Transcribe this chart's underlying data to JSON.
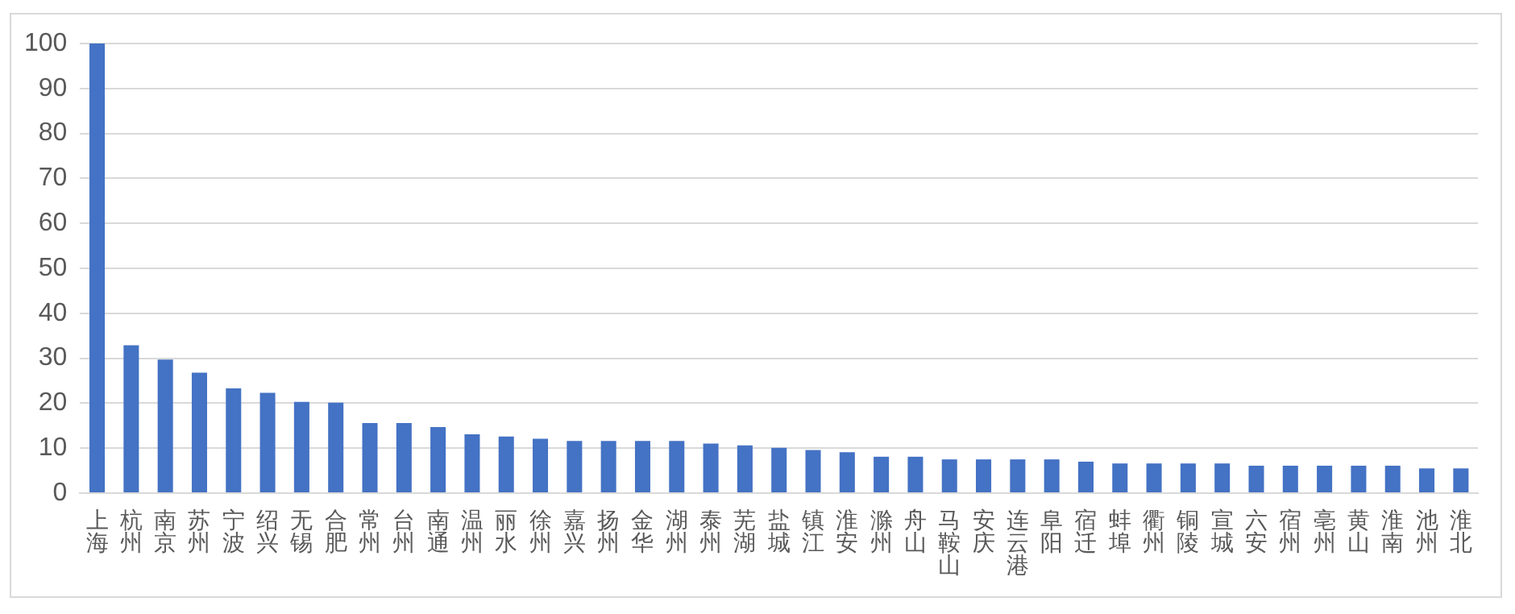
{
  "chart_data": {
    "type": "bar",
    "categories": [
      "上海",
      "杭州",
      "南京",
      "苏州",
      "宁波",
      "绍兴",
      "无锡",
      "合肥",
      "常州",
      "台州",
      "南通",
      "温州",
      "丽水",
      "徐州",
      "嘉兴",
      "扬州",
      "金华",
      "湖州",
      "泰州",
      "芜湖",
      "盐城",
      "镇江",
      "淮安",
      "滁州",
      "舟山",
      "马鞍山",
      "安庆",
      "连云港",
      "阜阳",
      "宿迁",
      "蚌埠",
      "衢州",
      "铜陵",
      "宣城",
      "六安",
      "宿州",
      "亳州",
      "黄山",
      "淮南",
      "池州",
      "淮北"
    ],
    "values": [
      100,
      32.9,
      29.7,
      26.8,
      23.3,
      22.3,
      20.3,
      20.1,
      15.6,
      15.6,
      14.7,
      13.1,
      12.6,
      12.1,
      11.6,
      11.6,
      11.6,
      11.6,
      11.0,
      10.6,
      10.1,
      9.6,
      9.1,
      8.1,
      8.1,
      7.5,
      7.5,
      7.5,
      7.5,
      7.0,
      6.6,
      6.6,
      6.6,
      6.6,
      6.1,
      6.1,
      6.1,
      6.1,
      6.1,
      5.5,
      5.5
    ],
    "color": "#4472c4",
    "ylim": [
      0,
      100
    ],
    "yticks": [
      0,
      10,
      20,
      30,
      40,
      50,
      60,
      70,
      80,
      90,
      100
    ],
    "grid": "y",
    "legend": false
  }
}
